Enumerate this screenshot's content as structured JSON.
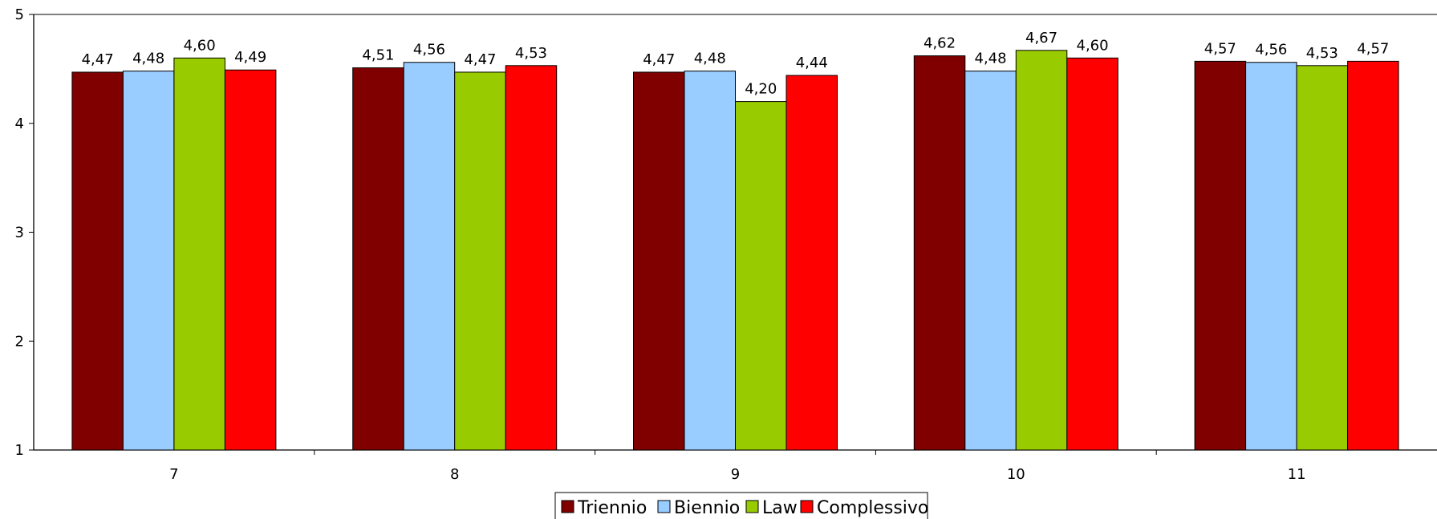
{
  "chart_data": {
    "type": "bar",
    "title": "",
    "xlabel": "",
    "ylabel": "",
    "categories": [
      "7",
      "8",
      "9",
      "10",
      "11"
    ],
    "ylim": [
      1,
      5
    ],
    "yticks": [
      "1",
      "2",
      "3",
      "4",
      "5"
    ],
    "grid": false,
    "legend_position": "bottom",
    "series": [
      {
        "name": "Triennio",
        "color": "#800000",
        "values": [
          4.47,
          4.51,
          4.47,
          4.62,
          4.57
        ],
        "labels": [
          "4,47",
          "4,51",
          "4,47",
          "4,62",
          "4,57"
        ]
      },
      {
        "name": "Biennio",
        "color": "#99ccff",
        "values": [
          4.48,
          4.56,
          4.48,
          4.48,
          4.56
        ],
        "labels": [
          "4,48",
          "4,56",
          "4,48",
          "4,48",
          "4,56"
        ]
      },
      {
        "name": "Law",
        "color": "#99cc00",
        "values": [
          4.6,
          4.47,
          4.2,
          4.67,
          4.53
        ],
        "labels": [
          "4,60",
          "4,47",
          "4,20",
          "4,67",
          "4,53"
        ]
      },
      {
        "name": "Complessivo",
        "color": "#ff0000",
        "values": [
          4.49,
          4.53,
          4.44,
          4.6,
          4.57
        ],
        "labels": [
          "4,49",
          "4,53",
          "4,44",
          "4,60",
          "4,57"
        ]
      }
    ]
  }
}
